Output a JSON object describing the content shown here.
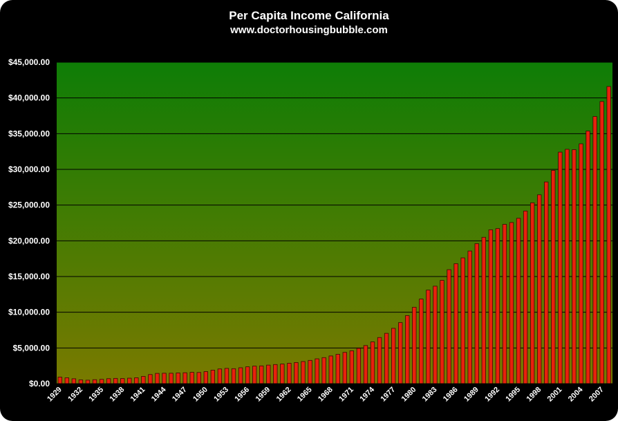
{
  "chart_data": {
    "type": "bar",
    "title": "Per Capita Income California",
    "subtitle": "www.doctorhousingbubble.com",
    "xlabel": "",
    "ylabel": "",
    "ylim": [
      0,
      45000
    ],
    "y_tick_labels": [
      "$0.00",
      "$5,000.00",
      "$10,000.00",
      "$15,000.00",
      "$20,000.00",
      "$25,000.00",
      "$30,000.00",
      "$35,000.00",
      "$40,000.00",
      "$45,000.00"
    ],
    "x_tick_labels": [
      "1929",
      "1932",
      "1935",
      "1938",
      "1941",
      "1944",
      "1947",
      "1950",
      "1953",
      "1956",
      "1959",
      "1962",
      "1965",
      "1968",
      "1971",
      "1974",
      "1977",
      "1980",
      "1983",
      "1986",
      "1989",
      "1992",
      "1995",
      "1998",
      "2001",
      "2004",
      "2007"
    ],
    "grid": true,
    "legend": "none",
    "colors": {
      "bar_fill": "#e8210d",
      "bar_shade": "#3a0604",
      "plot_top": "#0e7d06",
      "plot_bottom": "#7a7a00",
      "background": "#000000",
      "gridline": "#000000",
      "text": "#ffffff"
    },
    "categories": [
      "1929",
      "1930",
      "1931",
      "1932",
      "1933",
      "1934",
      "1935",
      "1936",
      "1937",
      "1938",
      "1939",
      "1940",
      "1941",
      "1942",
      "1943",
      "1944",
      "1945",
      "1946",
      "1947",
      "1948",
      "1949",
      "1950",
      "1951",
      "1952",
      "1953",
      "1954",
      "1955",
      "1956",
      "1957",
      "1958",
      "1959",
      "1960",
      "1961",
      "1962",
      "1963",
      "1964",
      "1965",
      "1966",
      "1967",
      "1968",
      "1969",
      "1970",
      "1971",
      "1972",
      "1973",
      "1974",
      "1975",
      "1976",
      "1977",
      "1978",
      "1979",
      "1980",
      "1981",
      "1982",
      "1983",
      "1984",
      "1985",
      "1986",
      "1987",
      "1988",
      "1989",
      "1990",
      "1991",
      "1992",
      "1993",
      "1994",
      "1995",
      "1996",
      "1997",
      "1998",
      "1999",
      "2000",
      "2001",
      "2002",
      "2003",
      "2004",
      "2005",
      "2006",
      "2007",
      "2008"
    ],
    "values": [
      920,
      820,
      690,
      530,
      490,
      560,
      610,
      700,
      740,
      720,
      770,
      830,
      1020,
      1280,
      1440,
      1460,
      1460,
      1500,
      1530,
      1590,
      1570,
      1690,
      1890,
      2060,
      2140,
      2100,
      2230,
      2360,
      2460,
      2490,
      2600,
      2680,
      2750,
      2860,
      2960,
      3100,
      3260,
      3480,
      3650,
      3880,
      4110,
      4380,
      4600,
      4950,
      5340,
      5850,
      6460,
      7050,
      7750,
      8550,
      9530,
      10700,
      11850,
      13100,
      13650,
      14460,
      15960,
      16800,
      17610,
      18570,
      19600,
      20490,
      21540,
      21710,
      22300,
      22560,
      23150,
      24170,
      25320,
      26440,
      28240,
      29860,
      32410,
      32810,
      32760,
      33580,
      35370,
      37400,
      39500,
      41600
    ]
  }
}
